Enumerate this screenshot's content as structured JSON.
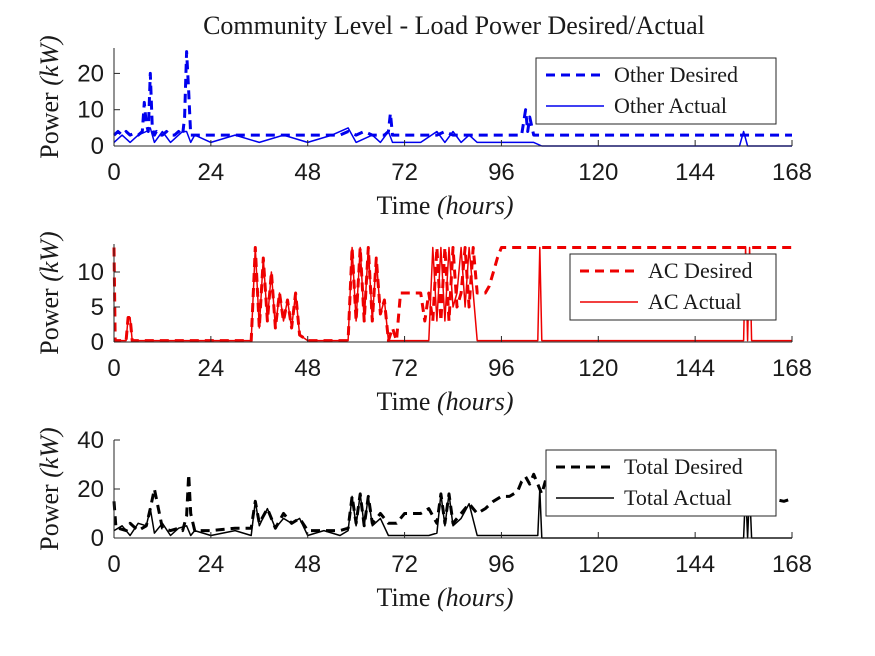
{
  "chart_data": {
    "title": "Community Level - Load Power Desired/Actual",
    "panels": [
      {
        "type": "line",
        "xlabel_main": "Time ",
        "xlabel_unit": "(hours)",
        "ylabel_main": "Power ",
        "ylabel_unit": "(kW)",
        "xlim": [
          0,
          168
        ],
        "ylim": [
          0,
          27
        ],
        "x_ticks": [
          0,
          24,
          48,
          72,
          96,
          120,
          144,
          168
        ],
        "y_ticks": [
          0,
          10,
          20
        ],
        "legend_position": "top-right",
        "series": [
          {
            "name": "Other Desired",
            "style": "dashed",
            "color": "#0000ee",
            "x": [
              0,
              1,
              2,
              3,
              4,
              5,
              6,
              7,
              7.5,
              8,
              8.5,
              9,
              9.5,
              10,
              10.5,
              11,
              12,
              13,
              14,
              15,
              16,
              17,
              17.5,
              18,
              18.5,
              19,
              20,
              22,
              24,
              28,
              32,
              36,
              40,
              44,
              48,
              52,
              56,
              58,
              60,
              62,
              64,
              66,
              67,
              68,
              68.5,
              69,
              70,
              72,
              76,
              80,
              82,
              84,
              86,
              88,
              90,
              92,
              94,
              96,
              98,
              100,
              101,
              102,
              102.5,
              103,
              104,
              106,
              108,
              112,
              116,
              120,
              124,
              128,
              132,
              136,
              140,
              144,
              148,
              152,
              156,
              158,
              160,
              164,
              166,
              168
            ],
            "y": [
              3,
              4,
              3,
              4,
              3,
              3.5,
              3,
              4,
              12,
              6,
              4,
              20,
              5,
              3,
              4,
              3,
              3,
              4,
              3,
              3,
              4,
              3,
              8,
              26,
              15,
              3,
              3,
              3,
              3,
              3,
              3,
              3,
              3,
              3,
              3,
              3,
              3,
              4,
              3,
              4,
              3,
              3,
              3,
              4,
              9,
              3,
              3,
              3,
              3,
              3,
              4,
              3,
              3,
              3,
              3,
              3,
              3,
              3,
              3,
              3,
              3,
              10,
              4,
              8,
              3,
              3,
              3,
              3,
              3,
              3,
              3,
              3,
              3,
              3,
              3,
              3,
              3,
              3,
              3,
              3,
              3,
              3,
              3,
              3
            ]
          },
          {
            "name": "Other Actual",
            "style": "solid",
            "color": "#0000ee",
            "x": [
              0,
              2,
              4,
              6,
              8,
              9,
              10,
              12,
              14,
              16,
              17,
              18,
              19,
              20,
              24,
              30,
              36,
              42,
              48,
              54,
              58,
              60,
              64,
              66,
              68,
              69,
              70,
              76,
              80,
              82,
              84,
              86,
              88,
              90,
              92,
              96,
              100,
              104,
              106,
              106.5,
              107,
              112,
              120,
              130,
              140,
              150,
              155,
              156,
              157,
              158,
              160,
              168
            ],
            "y": [
              1,
              3,
              1,
              3,
              4,
              5,
              1,
              4,
              1,
              3,
              4,
              4,
              1,
              3,
              1,
              3,
              1,
              3,
              1,
              3,
              5,
              1,
              3,
              1,
              4,
              1,
              1,
              1,
              4,
              1,
              4,
              1,
              3,
              1,
              1,
              1,
              1,
              1,
              0,
              0,
              0,
              0,
              0,
              0,
              0,
              0,
              0,
              4,
              0,
              0,
              0,
              0
            ]
          }
        ]
      },
      {
        "type": "line",
        "xlabel_main": "Time ",
        "xlabel_unit": "(hours)",
        "ylabel_main": "Power ",
        "ylabel_unit": "(kW)",
        "xlim": [
          0,
          168
        ],
        "ylim": [
          0,
          14
        ],
        "x_ticks": [
          0,
          24,
          48,
          72,
          96,
          120,
          144,
          168
        ],
        "y_ticks": [
          0,
          5,
          10
        ],
        "legend_position": "top-right",
        "series": [
          {
            "name": "AC Desired",
            "style": "dashed",
            "color": "#ee0000",
            "x": [
              0,
              0.3,
              0.6,
              1,
              3,
              3.5,
              4,
              4.5,
              5,
              10,
              20,
              30,
              34,
              35,
              36,
              37,
              38,
              39,
              40,
              41,
              42,
              43,
              44,
              45,
              46,
              48,
              52,
              56,
              58,
              59,
              60,
              61,
              62,
              63,
              64,
              65,
              66,
              67,
              68,
              69,
              70,
              71,
              72,
              74,
              76,
              77,
              78,
              79,
              80,
              81,
              82,
              83,
              84,
              85,
              86,
              87,
              88,
              89,
              90,
              91,
              92,
              93,
              94,
              95,
              96,
              100,
              110,
              120,
              130,
              140,
              150,
              160,
              168
            ],
            "y": [
              13.5,
              0.2,
              0.2,
              0.2,
              0.2,
              3.5,
              3.5,
              0.2,
              0.2,
              0.2,
              0.2,
              0.2,
              0.2,
              13.5,
              2,
              12,
              3,
              10,
              2,
              7,
              3,
              6,
              2,
              7,
              1,
              0.2,
              0.2,
              0.2,
              0.2,
              13.5,
              3,
              13.5,
              3,
              13.5,
              3,
              12,
              4,
              6,
              0.2,
              2,
              0.2,
              7,
              7,
              7,
              7,
              3,
              7,
              3,
              13.5,
              3,
              13.5,
              3,
              13.5,
              5,
              7,
              13.5,
              5,
              13.5,
              7,
              7,
              7,
              8,
              10,
              12,
              13.5,
              13.5,
              13.5,
              13.5,
              13.5,
              13.5,
              13.5,
              13.5,
              13.5
            ]
          },
          {
            "name": "AC Actual",
            "style": "solid",
            "color": "#ee0000",
            "x": [
              0,
              3,
              3.5,
              4,
              4.5,
              5,
              30,
              34,
              35,
              36,
              37,
              38,
              39,
              40,
              41,
              42,
              43,
              44,
              45,
              46,
              48,
              56,
              58,
              59,
              60,
              61,
              62,
              63,
              64,
              65,
              66,
              67,
              68,
              70,
              76,
              78,
              79,
              80,
              81,
              82,
              83,
              84,
              85,
              86,
              87,
              88,
              89,
              90,
              92,
              100,
              104,
              105,
              105.5,
              106,
              120,
              150,
              156,
              156.5,
              157,
              157.5,
              158,
              160,
              168
            ],
            "y": [
              0.2,
              0.2,
              3.5,
              3.5,
              0.2,
              0.2,
              0.2,
              0.2,
              13.5,
              2,
              12,
              3,
              10,
              2,
              7,
              3,
              6,
              2,
              7,
              1,
              0.2,
              0.2,
              0.2,
              13.5,
              3,
              13.5,
              3,
              13.5,
              3,
              12,
              4,
              6,
              0.2,
              0.2,
              0.2,
              0.2,
              13.5,
              3,
              13.5,
              3,
              13.5,
              5,
              7,
              13.5,
              5,
              13.5,
              7,
              0.2,
              0.2,
              0.2,
              0.2,
              0.2,
              13.5,
              0.2,
              0.2,
              0.2,
              0.2,
              13.5,
              0.2,
              13.5,
              0.2,
              0.2,
              0.2
            ]
          }
        ]
      },
      {
        "type": "line",
        "xlabel_main": "Time ",
        "xlabel_unit": "(hours)",
        "ylabel_main": "Power ",
        "ylabel_unit": "(kW)",
        "xlim": [
          0,
          168
        ],
        "ylim": [
          0,
          40
        ],
        "x_ticks": [
          0,
          24,
          48,
          72,
          96,
          120,
          144,
          168
        ],
        "y_ticks": [
          0,
          20,
          40
        ],
        "legend_position": "top-right",
        "series": [
          {
            "name": "Total Desired",
            "style": "dashed",
            "color": "#000000",
            "x": [
              0,
              0.5,
              1,
              3,
              4,
              6,
              8,
              9,
              10,
              12,
              14,
              16,
              17,
              18,
              18.5,
              19,
              20,
              24,
              30,
              34,
              35,
              36,
              38,
              40,
              42,
              44,
              46,
              48,
              52,
              56,
              58,
              59,
              60,
              61,
              62,
              63,
              64,
              66,
              68,
              70,
              72,
              74,
              76,
              78,
              80,
              81,
              82,
              83,
              84,
              86,
              88,
              90,
              92,
              94,
              96,
              98,
              100,
              101,
              102,
              103,
              104,
              106,
              108,
              109,
              110,
              112,
              120,
              130,
              140,
              150,
              160,
              166,
              168
            ],
            "y": [
              15,
              4,
              4,
              3,
              6,
              3,
              5,
              12,
              20,
              4,
              3,
              4,
              3,
              9,
              26,
              10,
              3,
              3,
              4,
              4,
              15,
              6,
              12,
              4,
              10,
              6,
              8,
              3,
              3,
              3,
              4,
              17,
              6,
              18,
              5,
              17,
              6,
              10,
              6,
              6,
              10,
              10,
              10,
              12,
              6,
              18,
              6,
              18,
              6,
              10,
              14,
              10,
              12,
              15,
              17,
              17,
              19,
              23,
              25,
              22,
              26,
              18,
              30,
              34,
              17,
              17,
              17,
              17,
              17,
              17,
              17,
              15,
              16
            ]
          },
          {
            "name": "Total Actual",
            "style": "solid",
            "color": "#000000",
            "x": [
              0,
              2,
              4,
              6,
              8,
              9,
              10,
              12,
              14,
              16,
              18,
              19,
              20,
              24,
              30,
              34,
              35,
              36,
              38,
              40,
              42,
              44,
              46,
              48,
              52,
              56,
              58,
              59,
              60,
              61,
              62,
              63,
              64,
              66,
              68,
              70,
              76,
              78,
              80,
              81,
              82,
              83,
              84,
              86,
              88,
              90,
              92,
              100,
              104,
              105,
              105.5,
              106,
              120,
              150,
              156,
              156.5,
              157,
              157.5,
              158,
              160,
              168
            ],
            "y": [
              3,
              5,
              1,
              6,
              5,
              12,
              2,
              6,
              1,
              4,
              5,
              1,
              3,
              1,
              3,
              1,
              15,
              5,
              12,
              4,
              8,
              6,
              8,
              1,
              3,
              1,
              3,
              17,
              5,
              18,
              5,
              17,
              5,
              8,
              1,
              1,
              1,
              1,
              2,
              18,
              5,
              18,
              5,
              8,
              14,
              1,
              1,
              1,
              1,
              1,
              20,
              0,
              0,
              0,
              0,
              20,
              0,
              20,
              0,
              0,
              0
            ]
          }
        ]
      }
    ]
  }
}
